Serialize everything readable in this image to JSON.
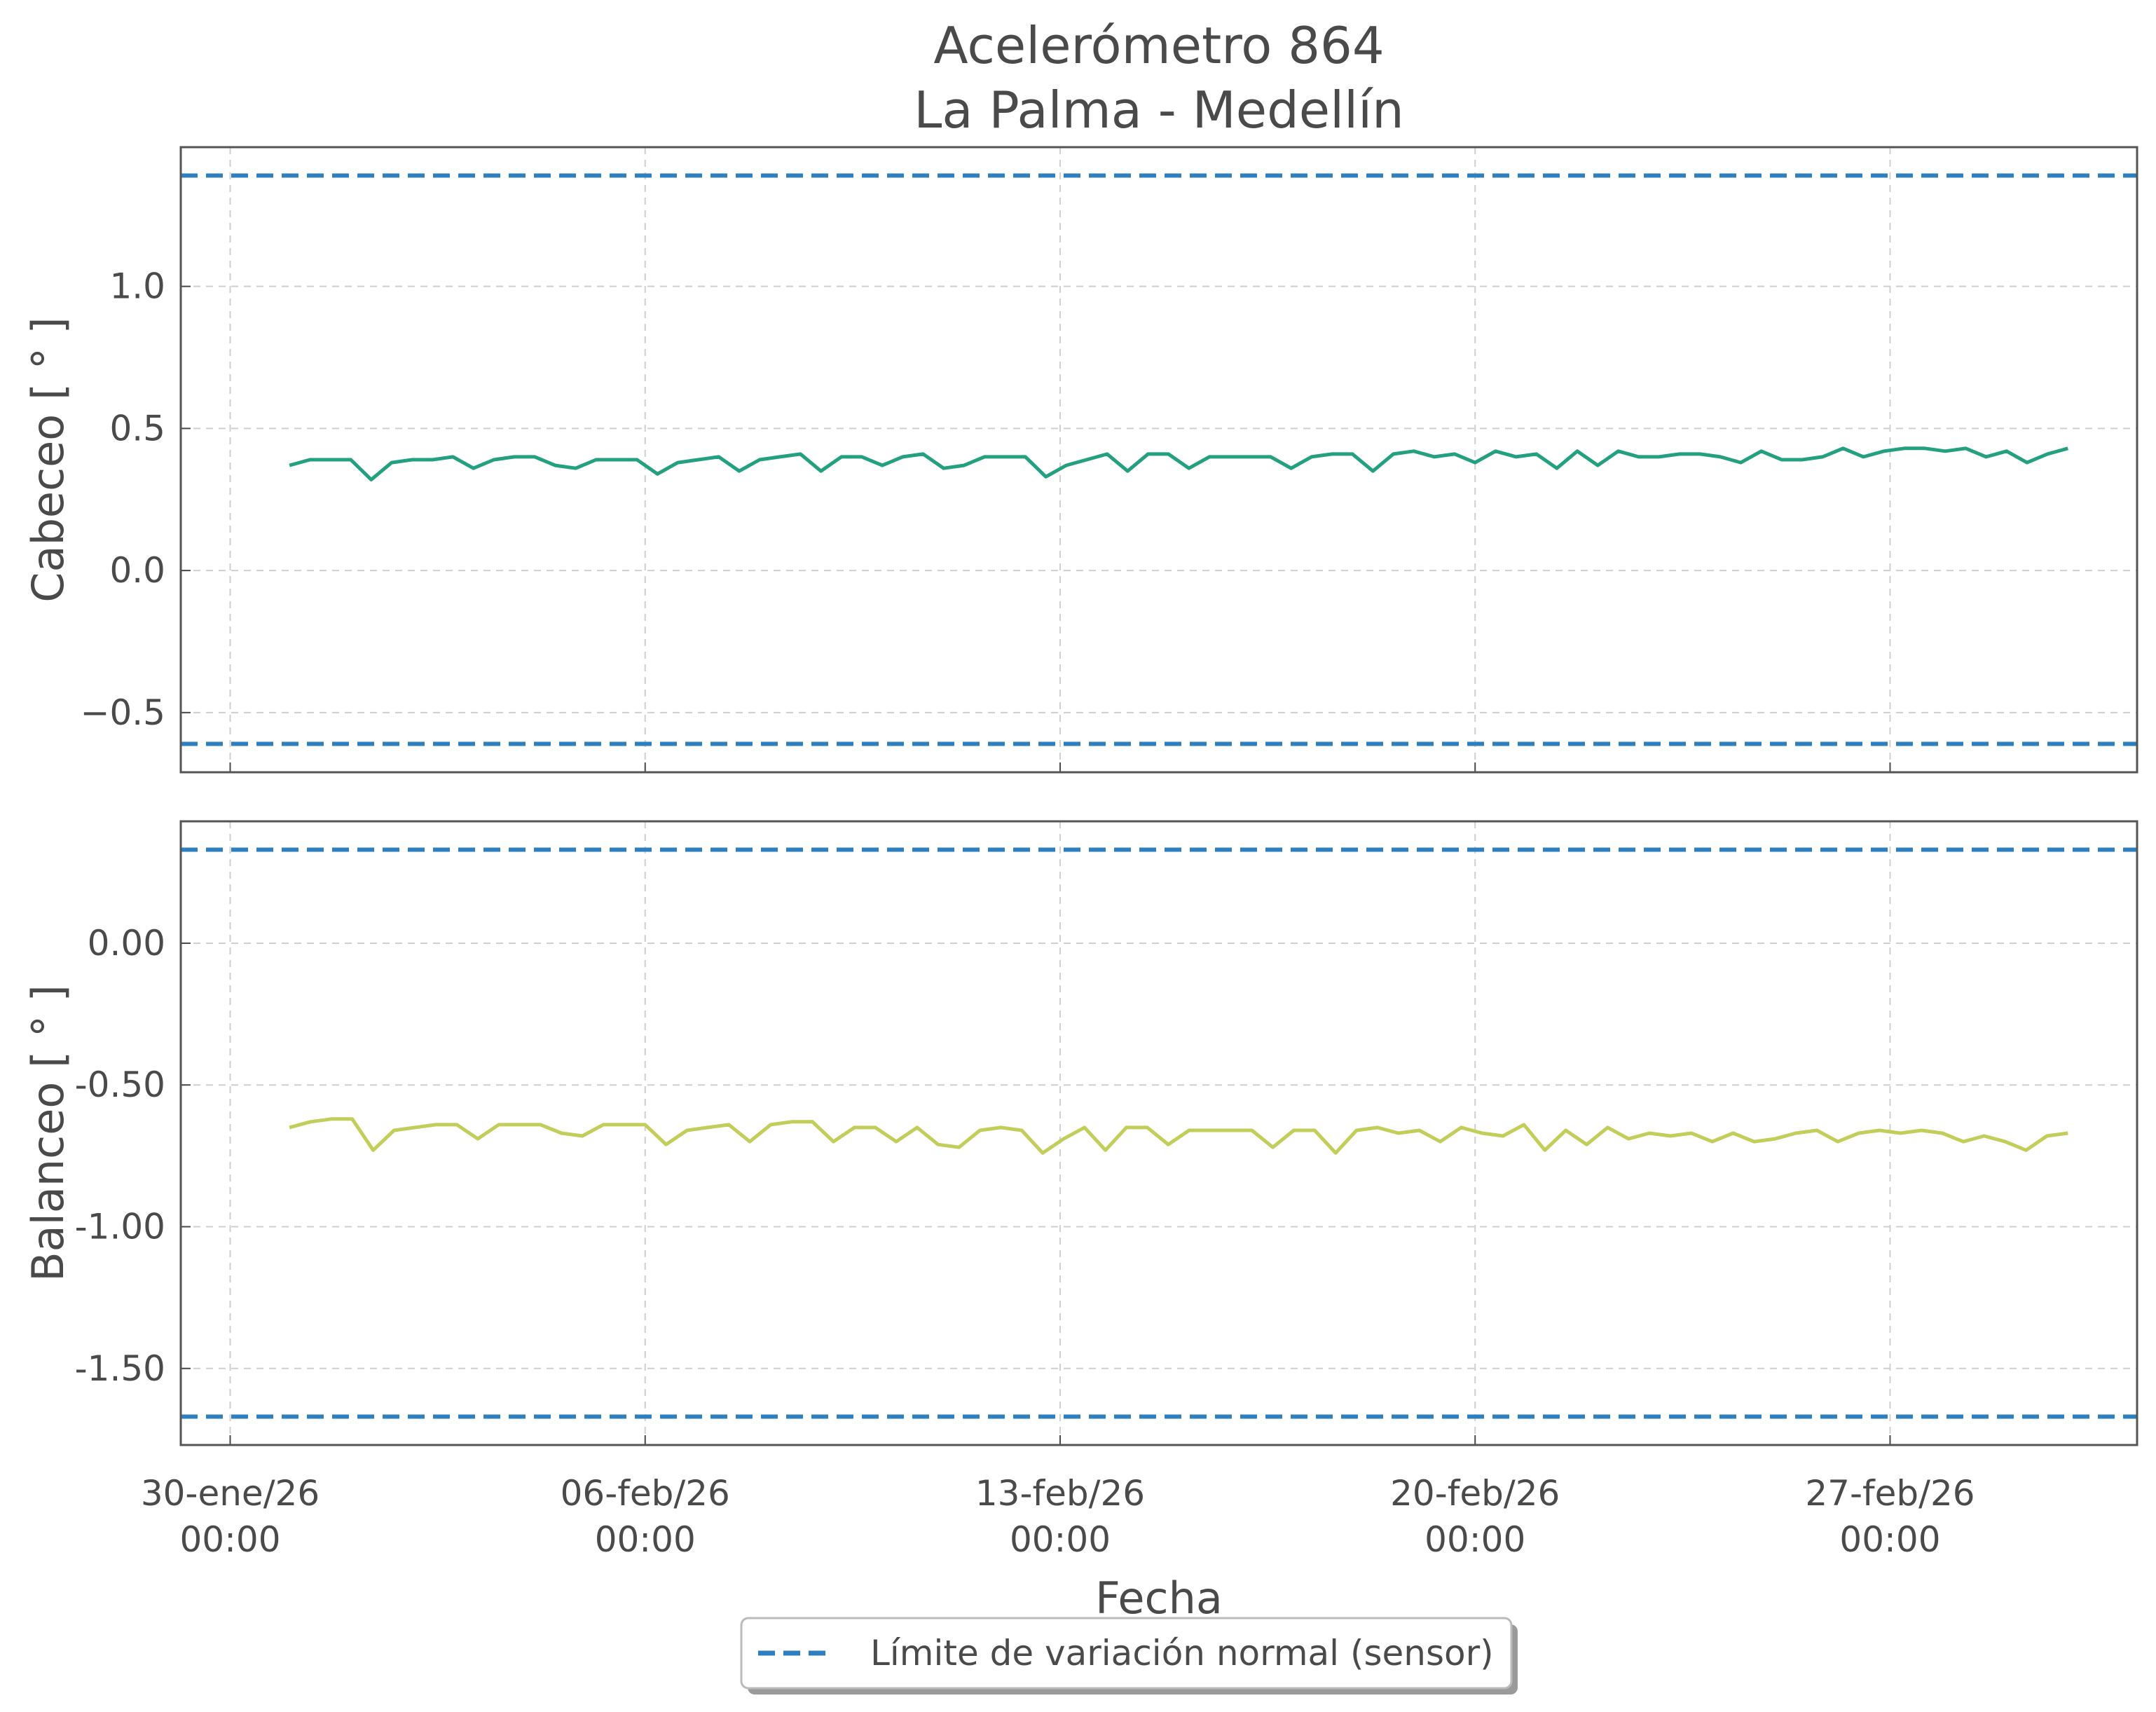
{
  "chart_data": {
    "type": "line",
    "title": "Acelerómetro 864",
    "subtitle": "La Palma - Medellín",
    "xlabel": "Fecha",
    "x_ticks": [
      {
        "date": "2026-01-30",
        "line1": "30-ene/26",
        "line2": "00:00"
      },
      {
        "date": "2026-02-06",
        "line1": "06-feb/26",
        "line2": "00:00"
      },
      {
        "date": "2026-02-13",
        "line1": "13-feb/26",
        "line2": "00:00"
      },
      {
        "date": "2026-02-20",
        "line1": "20-feb/26",
        "line2": "00:00"
      },
      {
        "date": "2026-02-27",
        "line1": "27-feb/26",
        "line2": "00:00"
      }
    ],
    "xlim": [
      "2026-01-29T04:00",
      "2026-03-03T04:00"
    ],
    "legend": {
      "placement": "bottom-center",
      "entries": [
        {
          "label": "Límite de variación normal (sensor)",
          "color": "#2e7fbf",
          "style": "dashed"
        }
      ]
    },
    "panels": [
      {
        "ylabel": "Cabeceo [ ° ]",
        "ylim": [
          -0.71,
          1.49
        ],
        "yticks": [
          1.0,
          0.5,
          0.0,
          -0.5
        ],
        "ytick_labels": [
          "1.0",
          "0.5",
          "0.0",
          "−0.5"
        ],
        "limits": [
          1.39,
          -0.61
        ],
        "grid": true,
        "series": [
          {
            "color": "#23a07f",
            "values": [
              0.37,
              0.39,
              0.39,
              0.39,
              0.32,
              0.38,
              0.39,
              0.39,
              0.4,
              0.36,
              0.39,
              0.4,
              0.4,
              0.37,
              0.36,
              0.39,
              0.39,
              0.39,
              0.34,
              0.38,
              0.39,
              0.4,
              0.35,
              0.39,
              0.4,
              0.41,
              0.35,
              0.4,
              0.4,
              0.37,
              0.4,
              0.41,
              0.36,
              0.37,
              0.4,
              0.4,
              0.4,
              0.33,
              0.37,
              0.39,
              0.41,
              0.35,
              0.41,
              0.41,
              0.36,
              0.4,
              0.4,
              0.4,
              0.4,
              0.36,
              0.4,
              0.41,
              0.41,
              0.35,
              0.41,
              0.42,
              0.4,
              0.41,
              0.38,
              0.42,
              0.4,
              0.41,
              0.36,
              0.42,
              0.37,
              0.42,
              0.4,
              0.4,
              0.41,
              0.41,
              0.4,
              0.38,
              0.42,
              0.39,
              0.39,
              0.4,
              0.43,
              0.4,
              0.42,
              0.43,
              0.43,
              0.42,
              0.43,
              0.4,
              0.42,
              0.38,
              0.41,
              0.43
            ]
          }
        ]
      },
      {
        "ylabel": "Balanceo [ ° ]",
        "ylim": [
          -1.77,
          0.43
        ],
        "yticks": [
          0.0,
          -0.5,
          -1.0,
          -1.5
        ],
        "ytick_labels": [
          "0.00",
          "-0.50",
          "-1.00",
          "-1.50"
        ],
        "limits": [
          0.33,
          -1.67
        ],
        "grid": true,
        "series": [
          {
            "color": "#c2cd5a",
            "values": [
              -0.65,
              -0.63,
              -0.62,
              -0.62,
              -0.73,
              -0.66,
              -0.65,
              -0.64,
              -0.64,
              -0.69,
              -0.64,
              -0.64,
              -0.64,
              -0.67,
              -0.68,
              -0.64,
              -0.64,
              -0.64,
              -0.71,
              -0.66,
              -0.65,
              -0.64,
              -0.7,
              -0.64,
              -0.63,
              -0.63,
              -0.7,
              -0.65,
              -0.65,
              -0.7,
              -0.65,
              -0.71,
              -0.72,
              -0.66,
              -0.65,
              -0.66,
              -0.74,
              -0.69,
              -0.65,
              -0.73,
              -0.65,
              -0.65,
              -0.71,
              -0.66,
              -0.66,
              -0.66,
              -0.66,
              -0.72,
              -0.66,
              -0.66,
              -0.74,
              -0.66,
              -0.65,
              -0.67,
              -0.66,
              -0.7,
              -0.65,
              -0.67,
              -0.68,
              -0.64,
              -0.73,
              -0.66,
              -0.71,
              -0.65,
              -0.69,
              -0.67,
              -0.68,
              -0.67,
              -0.7,
              -0.67,
              -0.7,
              -0.69,
              -0.67,
              -0.66,
              -0.7,
              -0.67,
              -0.66,
              -0.67,
              -0.66,
              -0.67,
              -0.7,
              -0.68,
              -0.7,
              -0.73,
              -0.68,
              -0.67
            ]
          }
        ]
      }
    ]
  }
}
